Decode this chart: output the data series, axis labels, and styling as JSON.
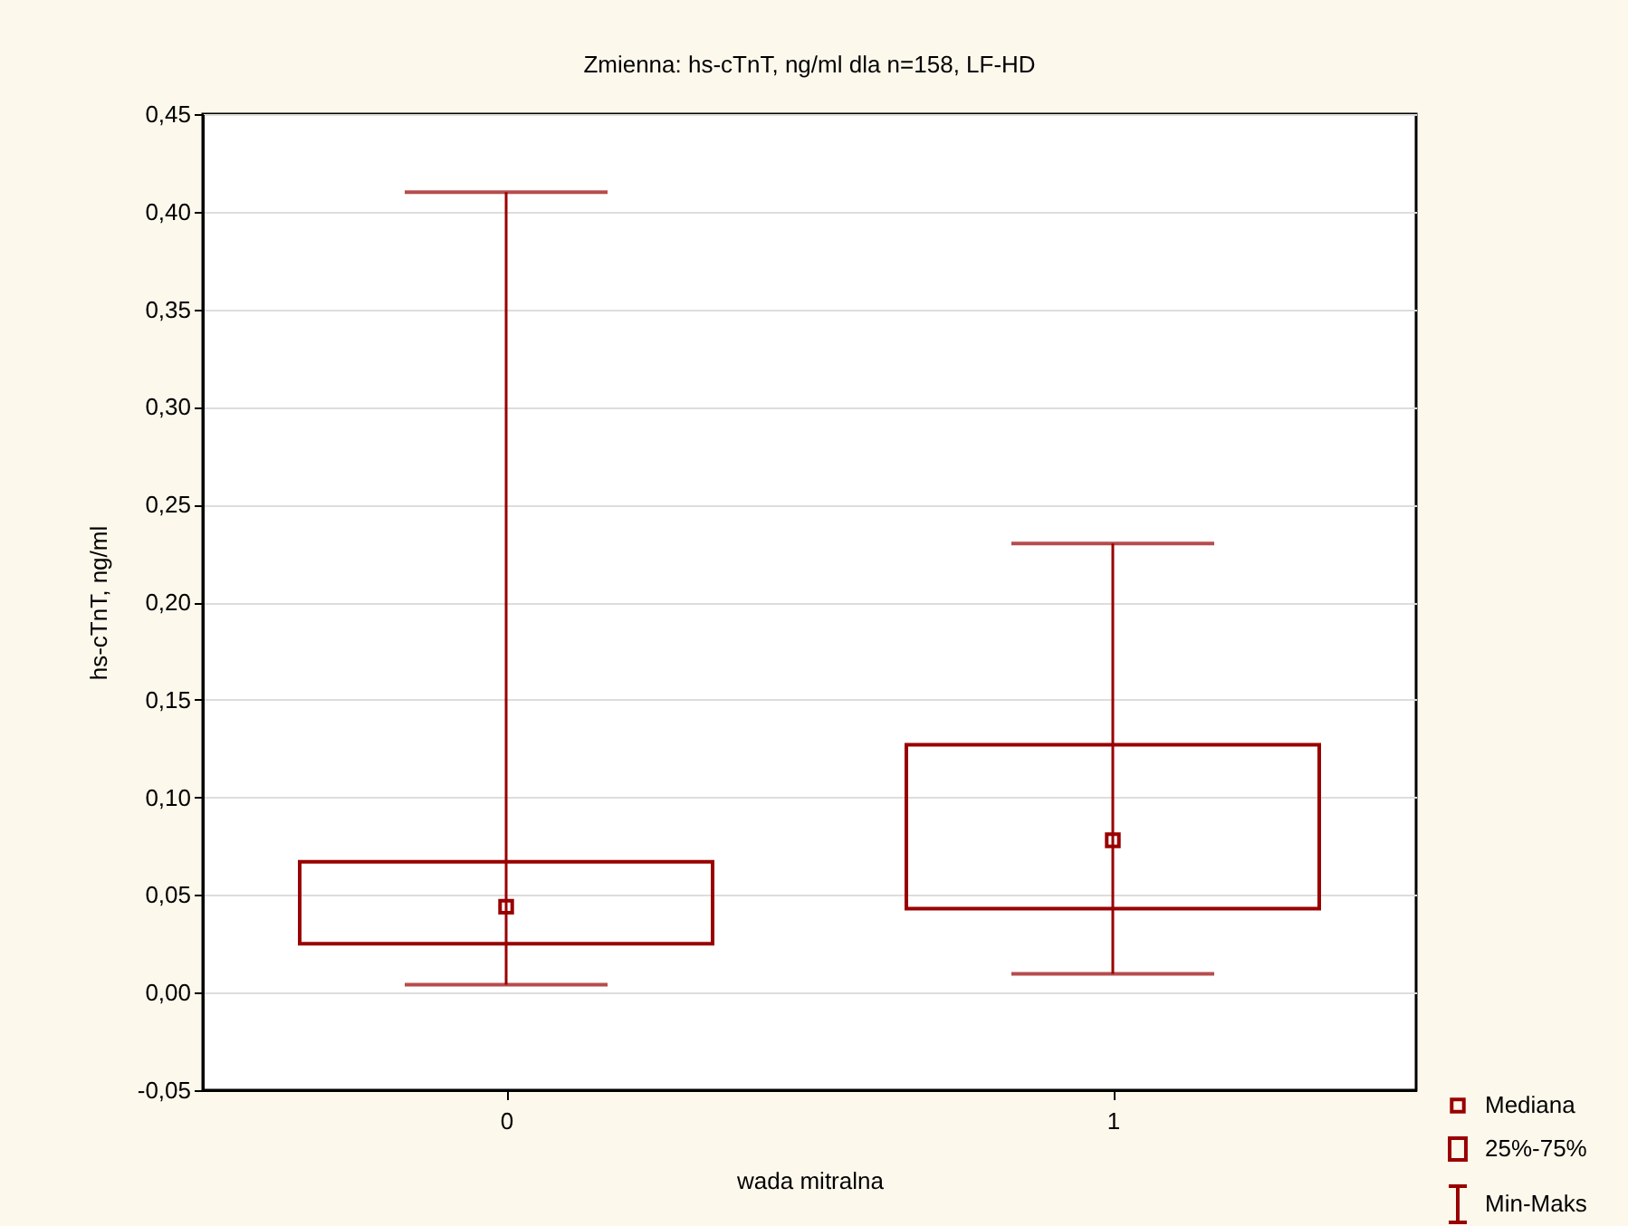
{
  "chart_data": {
    "type": "box",
    "title": "Zmienna:  hs-cTnT, ng/ml dla n=158, LF-HD",
    "xlabel": "wada mitralna",
    "ylabel": "hs-cTnT, ng/ml",
    "categories": [
      "0",
      "1"
    ],
    "boxes": [
      {
        "low": 0.004,
        "q1": 0.025,
        "median": 0.044,
        "q3": 0.067,
        "high": 0.41
      },
      {
        "low": 0.0096,
        "q1": 0.043,
        "median": 0.078,
        "q3": 0.127,
        "high": 0.23
      }
    ],
    "color": "#990000",
    "ylim": [
      -0.05,
      0.45
    ],
    "yticks": [
      {
        "value": -0.05,
        "label": "-0,05"
      },
      {
        "value": 0,
        "label": "0,00"
      },
      {
        "value": 0.05,
        "label": "0,05"
      },
      {
        "value": 0.1,
        "label": "0,10"
      },
      {
        "value": 0.15,
        "label": "0,15"
      },
      {
        "value": 0.2,
        "label": "0,20"
      },
      {
        "value": 0.25,
        "label": "0,25"
      },
      {
        "value": 0.3,
        "label": "0,30"
      },
      {
        "value": 0.35,
        "label": "0,35"
      },
      {
        "value": 0.4,
        "label": "0,40"
      },
      {
        "value": 0.45,
        "label": "0,45"
      }
    ],
    "grid": "y",
    "marker": "square",
    "annotations": [
      "Mediana",
      "25%-75%",
      "Min-Maks"
    ]
  }
}
